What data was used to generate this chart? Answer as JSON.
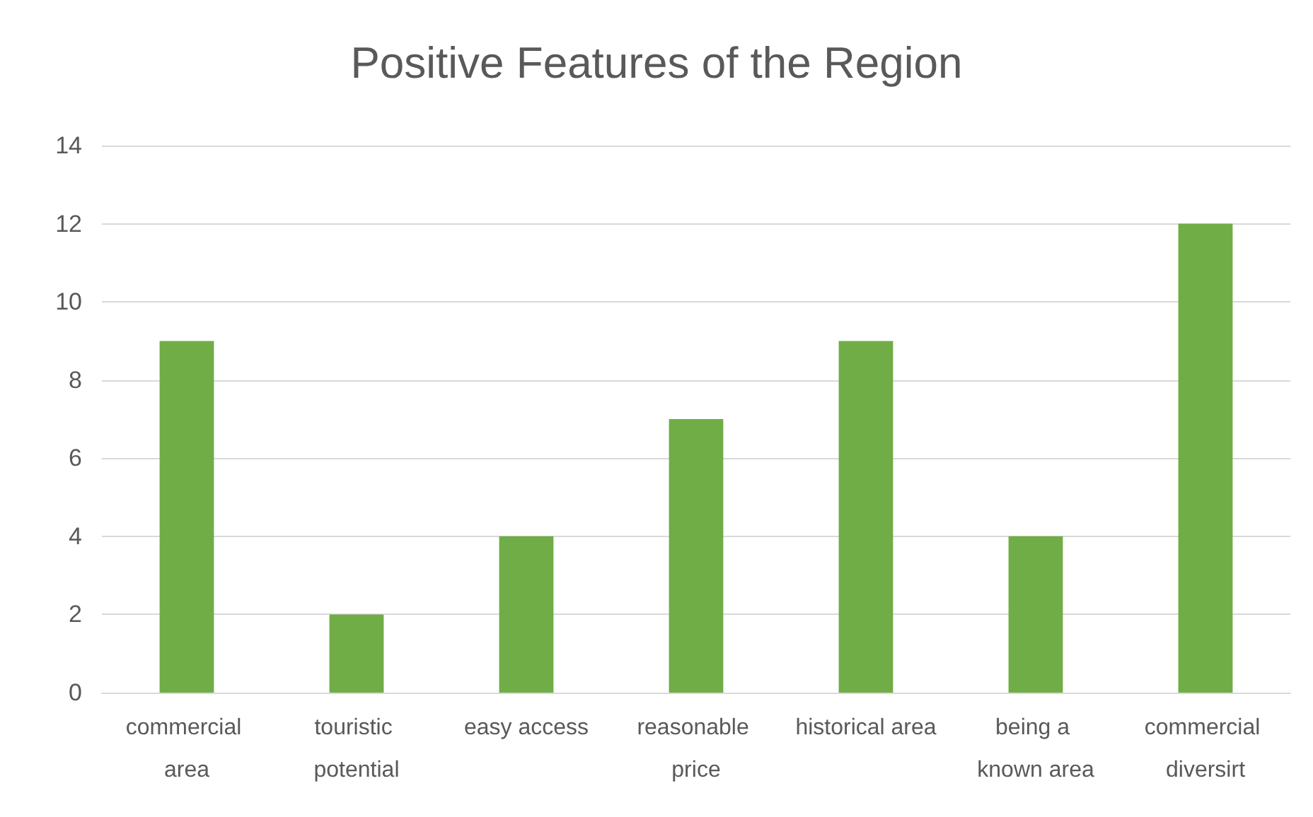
{
  "chart_data": {
    "type": "bar",
    "title": "Positive Features of the Region",
    "categories": [
      "commercial area",
      "touristic potential",
      "easy access",
      "reasonable price",
      "historical area",
      "being a known area",
      "commercial diversirt"
    ],
    "values": [
      9,
      2,
      4,
      7,
      9,
      4,
      12
    ],
    "color": "#70ad47",
    "ylim": [
      0,
      14
    ],
    "yticks": [
      0,
      2,
      4,
      6,
      8,
      10,
      12,
      14
    ],
    "grid": "y"
  }
}
